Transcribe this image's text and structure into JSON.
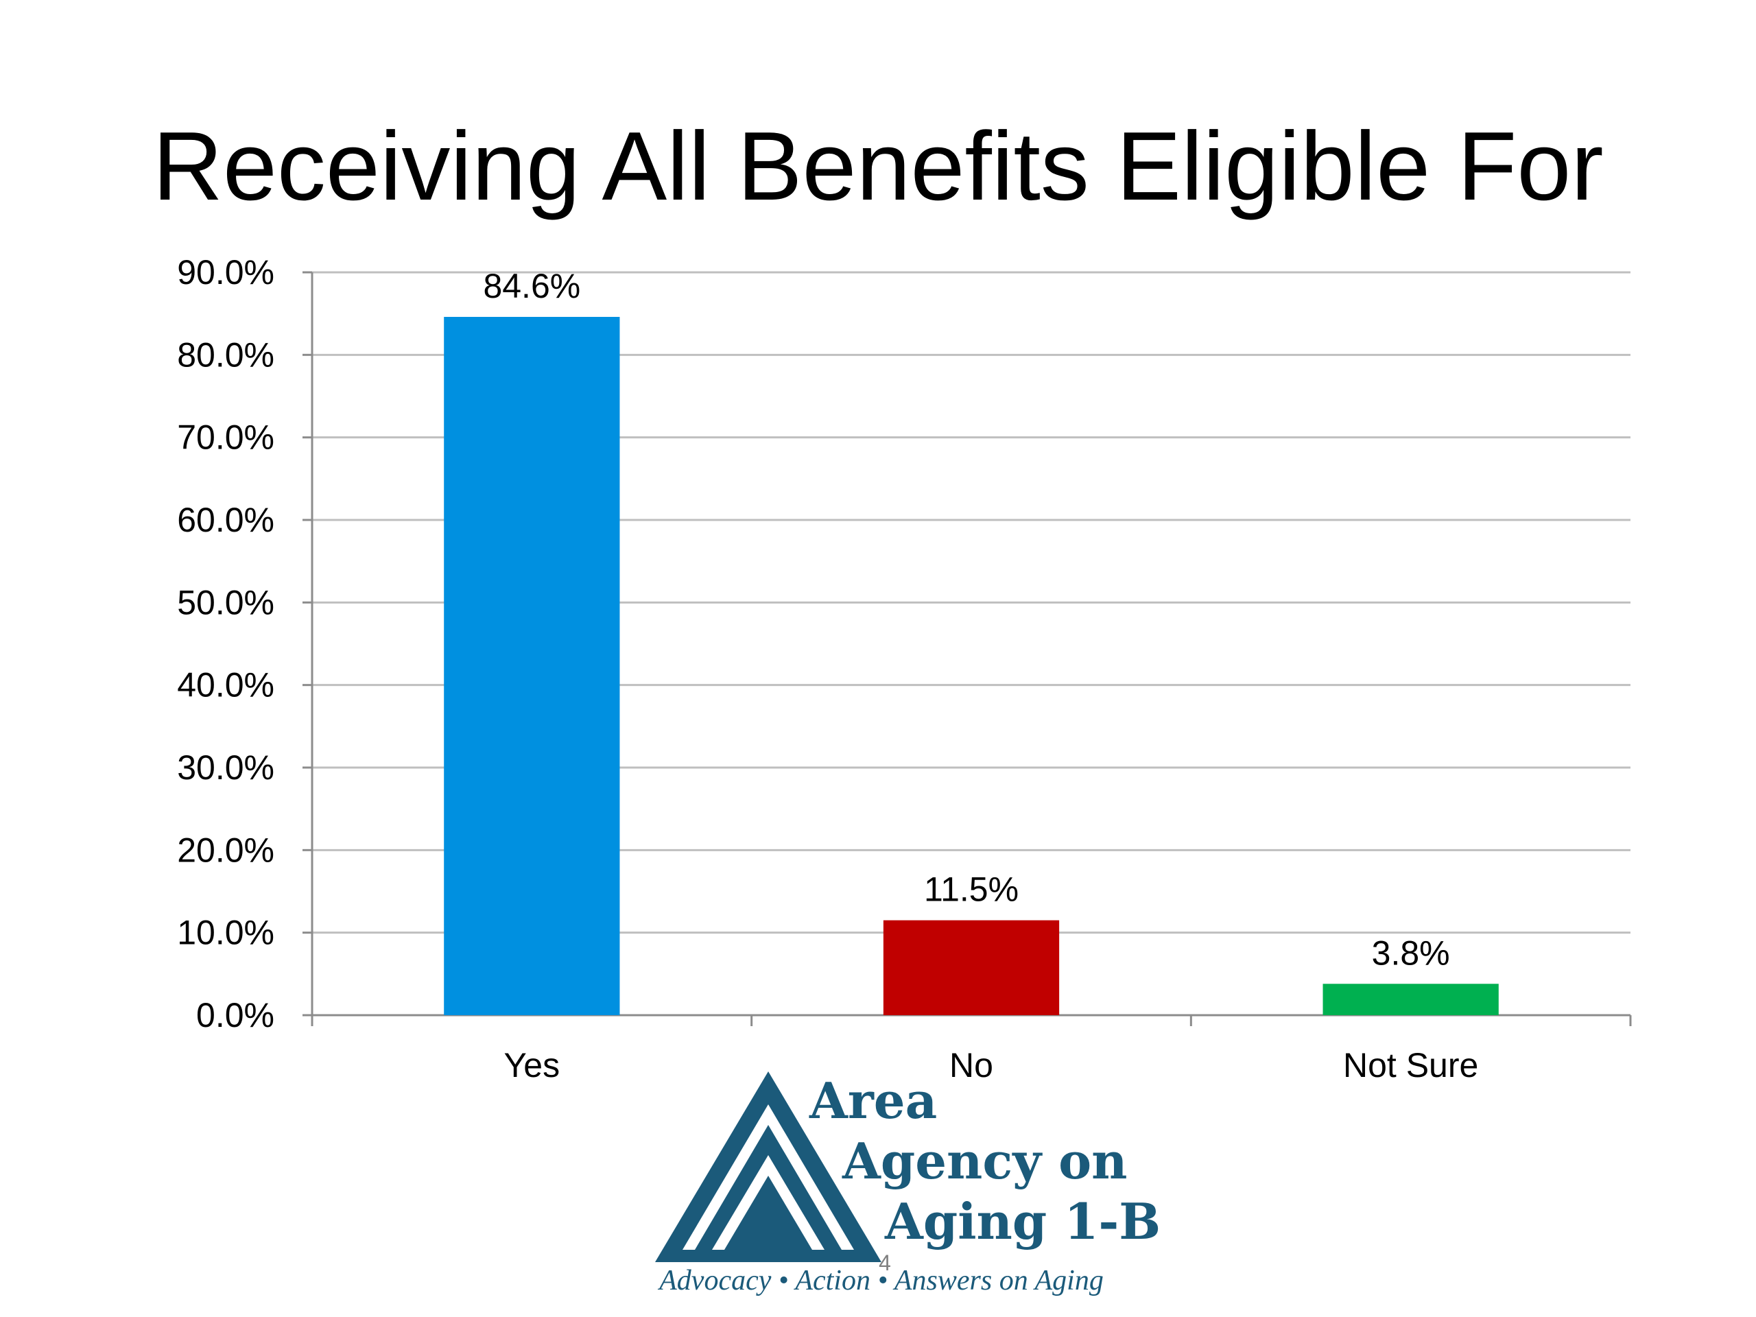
{
  "slide": {
    "title": "Receiving All Benefits Eligible For",
    "page_number": "4"
  },
  "logo": {
    "line1": "Area",
    "line2": "Agency on",
    "line3": "Aging 1-B",
    "tagline": "Advocacy • Action • Answers on Aging",
    "color": "#1b5a7a"
  },
  "chart_data": {
    "type": "bar",
    "title": "Receiving All Benefits Eligible For",
    "categories": [
      "Yes",
      "No",
      "Not Sure"
    ],
    "values": [
      84.6,
      11.5,
      3.8
    ],
    "data_labels": [
      "84.6%",
      "11.5%",
      "3.8%"
    ],
    "colors": [
      "#0090e0",
      "#c00000",
      "#00b050"
    ],
    "ylim": [
      0,
      90
    ],
    "yticks": [
      0,
      10,
      20,
      30,
      40,
      50,
      60,
      70,
      80,
      90
    ],
    "ytick_labels": [
      "0.0%",
      "10.0%",
      "20.0%",
      "30.0%",
      "40.0%",
      "50.0%",
      "60.0%",
      "70.0%",
      "80.0%",
      "90.0%"
    ],
    "grid": true,
    "legend": "none",
    "xlabel": "",
    "ylabel": ""
  }
}
